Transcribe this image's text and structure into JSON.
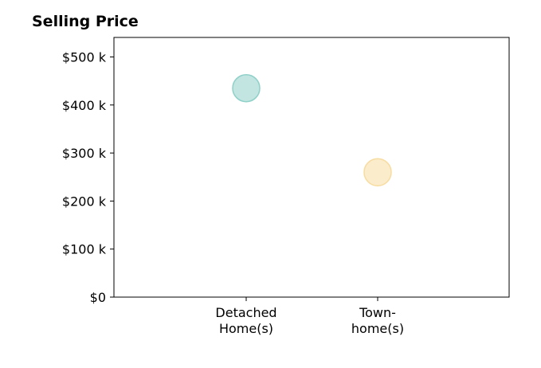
{
  "chart_data": {
    "type": "scatter",
    "title": "Selling Price",
    "categories": [
      {
        "label": [
          "Detached",
          "Home(s)"
        ],
        "value": 435
      },
      {
        "label": [
          "Town-",
          "home(s)"
        ],
        "value": 260
      }
    ],
    "y_unit": "$ thousands",
    "ylim": [
      0,
      540
    ],
    "yticks": [
      0,
      100,
      200,
      300,
      400,
      500
    ],
    "ytick_labels": [
      "$0",
      "$100 k",
      "$200 k",
      "$300 k",
      "$400 k",
      "$500 k"
    ],
    "point_colors": [
      "#8fd0c8",
      "#f7dca0"
    ],
    "grid": false
  }
}
